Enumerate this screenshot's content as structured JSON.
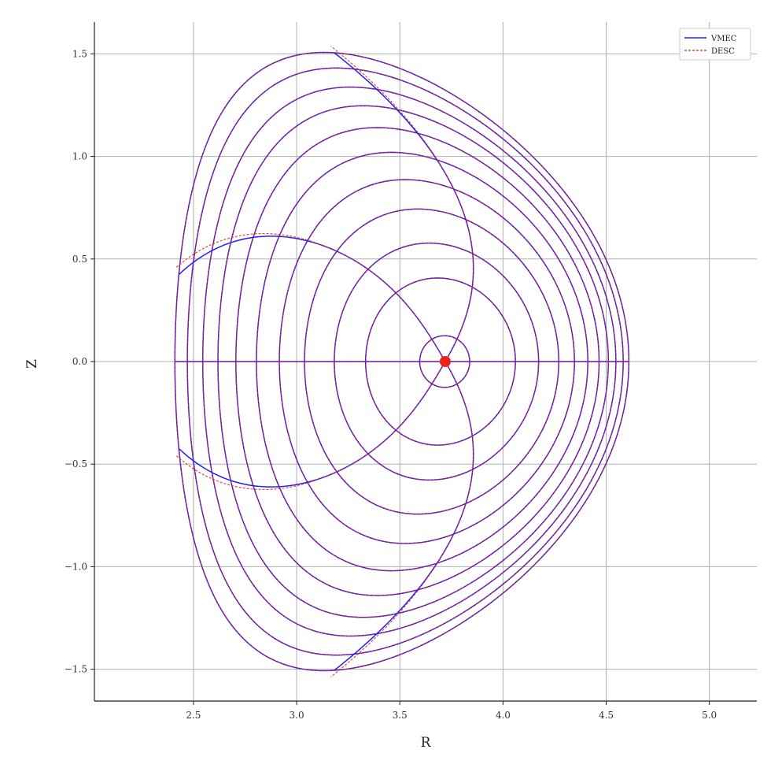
{
  "chart_data": {
    "type": "line",
    "title": "",
    "xlabel": "R",
    "ylabel": "Z",
    "xlim": [
      2.02,
      5.23
    ],
    "ylim": [
      -1.655,
      1.655
    ],
    "x_ticks": [
      2.5,
      3.0,
      3.5,
      4.0,
      4.5,
      5.0
    ],
    "y_ticks": [
      -1.5,
      -1.0,
      -0.5,
      0.0,
      0.5,
      1.0,
      1.5
    ],
    "x_tick_labels": [
      "2.5",
      "3.0",
      "3.5",
      "4.0",
      "4.5",
      "5.0"
    ],
    "y_tick_labels": [
      "−1.5",
      "−1.0",
      "−0.5",
      "0.0",
      "0.5",
      "1.0",
      "1.5"
    ],
    "grid": true,
    "legend_position": "top-right",
    "magnetic_axis": {
      "R": 3.72,
      "Z": 0.0
    },
    "boundary": {
      "R0": 3.51,
      "a": 1.1,
      "kappa": 1.37,
      "delta": 0.35
    },
    "flux_surfaces_rho": [
      0.11,
      0.33,
      0.45,
      0.56,
      0.65,
      0.73,
      0.8,
      0.86,
      0.91,
      0.96,
      1.0
    ],
    "theta_lines_deg": [
      0,
      60,
      120,
      180,
      240,
      300
    ],
    "series": [
      {
        "name": "VMEC",
        "color": "#1f1fff",
        "style": "solid"
      },
      {
        "name": "DESC",
        "color": "#e8241a",
        "style": "dashed"
      }
    ]
  }
}
